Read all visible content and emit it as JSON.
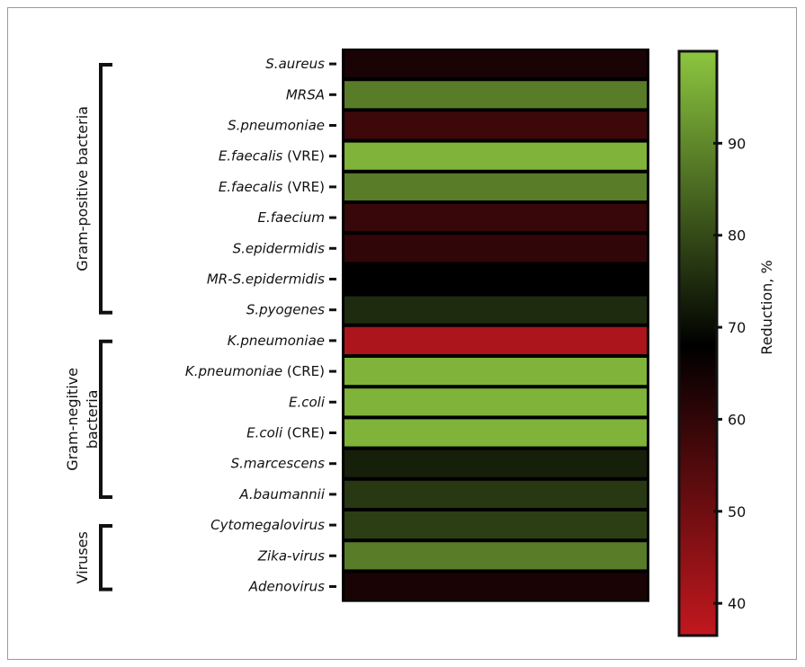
{
  "chart_data": {
    "type": "heatmap",
    "colorbar": {
      "label": "Reduction, %",
      "min": 36.5,
      "max": 100,
      "ticks": [
        40,
        50,
        60,
        70,
        80,
        90
      ],
      "colors": {
        "low": "#c2181e",
        "mid": "#000000",
        "high": "#8cc63f",
        "mid_value": 68
      }
    },
    "rows": [
      {
        "italic": "S.aureus",
        "suffix": "",
        "value": 64,
        "group": "Gram-positive bacteria"
      },
      {
        "italic": "MRSA",
        "suffix": "",
        "value": 88,
        "group": "Gram-positive bacteria"
      },
      {
        "italic": "S.pneumoniae",
        "suffix": "",
        "value": 58,
        "group": "Gram-positive bacteria"
      },
      {
        "italic": "E.faecalis",
        "suffix": " (VRE)",
        "value": 97,
        "group": "Gram-positive bacteria",
        "_note": ""
      },
      {
        "italic": "E.faecalis",
        "suffix": " (VRE)",
        "value": 88,
        "group": "Gram-positive bacteria"
      },
      {
        "italic": "E.faecium",
        "suffix": "",
        "value": 59,
        "group": "Gram-positive bacteria"
      },
      {
        "italic": "S.epidermidis",
        "suffix": "",
        "value": 60,
        "group": "Gram-positive bacteria"
      },
      {
        "italic": "MR-S.epidermidis",
        "suffix": "",
        "value": 68,
        "group": "Gram-positive bacteria"
      },
      {
        "italic": "S.pyogenes",
        "suffix": "",
        "value": 75,
        "group": "Gram-positive bacteria"
      },
      {
        "italic": "K.pneumoniae",
        "suffix": "",
        "value": 40,
        "group": "Gram-negitive bacteria"
      },
      {
        "italic": "K.pneumoniae",
        "suffix": " (CRE)",
        "value": 97,
        "group": "Gram-negitive bacteria"
      },
      {
        "italic": "E.coli",
        "suffix": "",
        "value": 97,
        "group": "Gram-negitive bacteria"
      },
      {
        "italic": "E.coli",
        "suffix": " (CRE)",
        "value": 97,
        "group": "Gram-negitive bacteria"
      },
      {
        "italic": "S.marcescens",
        "suffix": "",
        "value": 73,
        "group": "Gram-negitive bacteria"
      },
      {
        "italic": "A.baumannii",
        "suffix": "",
        "value": 77,
        "group": "Gram-negitive bacteria"
      },
      {
        "italic": "Cytomegalovirus",
        "suffix": "",
        "value": 78,
        "group": "Viruses"
      },
      {
        "italic": "Zika-virus",
        "suffix": "",
        "value": 88,
        "group": "Viruses"
      },
      {
        "italic": "Adenovirus",
        "suffix": "",
        "value": 64,
        "group": "Viruses"
      }
    ],
    "groups": [
      {
        "lines": [
          "Gram-positive bacteria"
        ],
        "first": 0,
        "last": 8
      },
      {
        "lines": [
          "Gram-negitive",
          "bacteria"
        ],
        "first": 9,
        "last": 14
      },
      {
        "lines": [
          "Viruses"
        ],
        "first": 15,
        "last": 17
      }
    ]
  }
}
